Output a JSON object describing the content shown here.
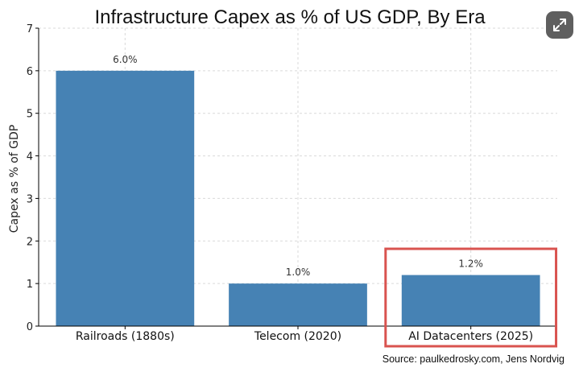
{
  "chart_data": {
    "type": "bar",
    "title": "Infrastructure Capex as % of US GDP, By Era",
    "ylabel": "Capex as % of GDP",
    "xlabel": "",
    "categories": [
      "Railroads (1880s)",
      "Telecom (2020)",
      "AI Datacenters (2025)"
    ],
    "values": [
      6.0,
      1.0,
      1.2
    ],
    "data_labels": [
      "6.0%",
      "1.0%",
      "1.2%"
    ],
    "yticks": [
      0,
      1,
      2,
      3,
      4,
      5,
      6,
      7
    ],
    "ylim": [
      0,
      7
    ],
    "grid": true,
    "bar_color": "#4682b4",
    "highlight_category": "AI Datacenters (2025)",
    "highlight_color": "#d9534f"
  },
  "source": "Source: paulkedrosky.com, Jens Nordvig",
  "expand_button": {
    "icon": "expand-arrows-icon"
  }
}
